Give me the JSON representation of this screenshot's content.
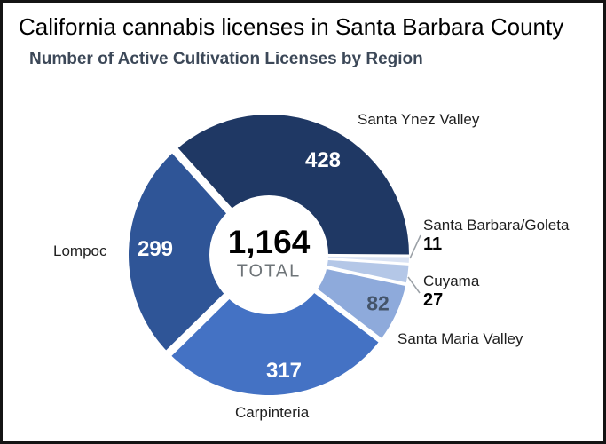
{
  "title": "California cannabis licenses in Santa Barbara County",
  "subtitle": "Number of Active Cultivation Licenses by Region",
  "chart_data": {
    "type": "pie",
    "subtype": "donut",
    "title": "Number of Active Cultivation Licenses by Region",
    "categories": [
      "Santa Ynez Valley",
      "Santa Barbara/Goleta",
      "Cuyama",
      "Santa Maria Valley",
      "Carpinteria",
      "Lompoc"
    ],
    "values": [
      428,
      11,
      27,
      82,
      317,
      299
    ],
    "colors": [
      "#1F3864",
      "#D9E2F3",
      "#B4C7E7",
      "#8EAADB",
      "#4472C4",
      "#2F5597"
    ],
    "total": 1164,
    "center": {
      "total_display": "1,164",
      "label": "TOTAL"
    },
    "start_angle_deg": -42,
    "direction": "clockwise",
    "labels_outside": true,
    "legend_position": "none",
    "slice_separator_color": "#FFFFFF",
    "value_label_color_dark_slices": "#FFFFFF",
    "value_label_color_light_slice": "#44546A"
  }
}
